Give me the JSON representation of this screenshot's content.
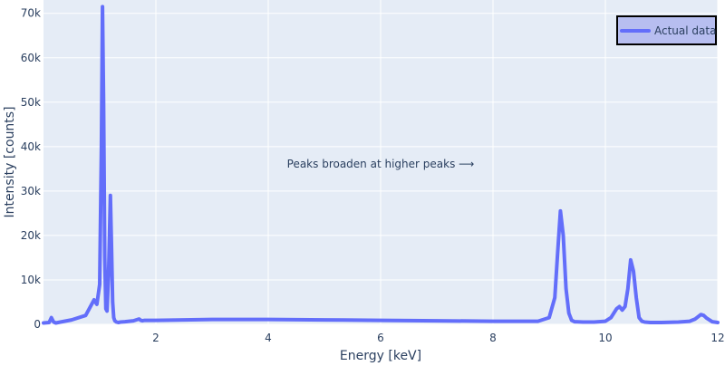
{
  "chart_data": {
    "type": "line",
    "xlabel": "Energy [keV]",
    "ylabel": "Intensity [counts]",
    "xlim": [
      0,
      12
    ],
    "ylim": [
      0,
      73000
    ],
    "x_ticks": [
      2,
      4,
      6,
      8,
      10,
      12
    ],
    "x_tick_labels": [
      "2",
      "4",
      "6",
      "8",
      "10",
      "12"
    ],
    "y_ticks": [
      0,
      10000,
      20000,
      30000,
      40000,
      50000,
      60000,
      70000
    ],
    "y_tick_labels": [
      "0",
      "10k",
      "20k",
      "30k",
      "40k",
      "50k",
      "60k",
      "70k"
    ],
    "grid": true,
    "legend_position": "top-right",
    "background_color": "#e5ecf6",
    "line_color": "#636efa",
    "annotation": "Peaks broaden at higher peaks ⟶",
    "series": [
      {
        "name": "Actual data",
        "x": [
          0.0,
          0.1,
          0.14,
          0.18,
          0.22,
          0.3,
          0.5,
          0.75,
          0.9,
          0.95,
          1.0,
          1.03,
          1.05,
          1.07,
          1.09,
          1.11,
          1.13,
          1.16,
          1.19,
          1.21,
          1.23,
          1.25,
          1.27,
          1.3,
          1.33,
          1.37,
          1.45,
          1.6,
          1.7,
          1.73,
          1.76,
          1.8,
          2.0,
          2.5,
          3.0,
          4.0,
          5.0,
          6.0,
          7.0,
          8.0,
          8.8,
          9.0,
          9.1,
          9.15,
          9.2,
          9.25,
          9.3,
          9.35,
          9.4,
          9.45,
          9.6,
          9.8,
          10.0,
          10.1,
          10.2,
          10.25,
          10.3,
          10.35,
          10.4,
          10.45,
          10.5,
          10.55,
          10.6,
          10.65,
          10.7,
          10.8,
          11.0,
          11.3,
          11.5,
          11.6,
          11.7,
          11.75,
          11.8,
          11.9,
          12.0
        ],
        "y": [
          300,
          400,
          1500,
          500,
          300,
          500,
          1000,
          2000,
          5500,
          4500,
          9000,
          40000,
          71500,
          50000,
          15000,
          3500,
          3000,
          12000,
          29000,
          18000,
          5000,
          1500,
          800,
          500,
          400,
          500,
          600,
          800,
          1200,
          900,
          800,
          900,
          900,
          1000,
          1100,
          1100,
          1000,
          900,
          800,
          700,
          700,
          1500,
          6000,
          16000,
          25500,
          20000,
          8000,
          2500,
          900,
          600,
          500,
          500,
          700,
          1500,
          3500,
          4000,
          3200,
          4000,
          8000,
          14500,
          12000,
          6000,
          1500,
          700,
          500,
          400,
          400,
          500,
          700,
          1200,
          2200,
          2000,
          1400,
          600,
          400
        ]
      }
    ]
  }
}
